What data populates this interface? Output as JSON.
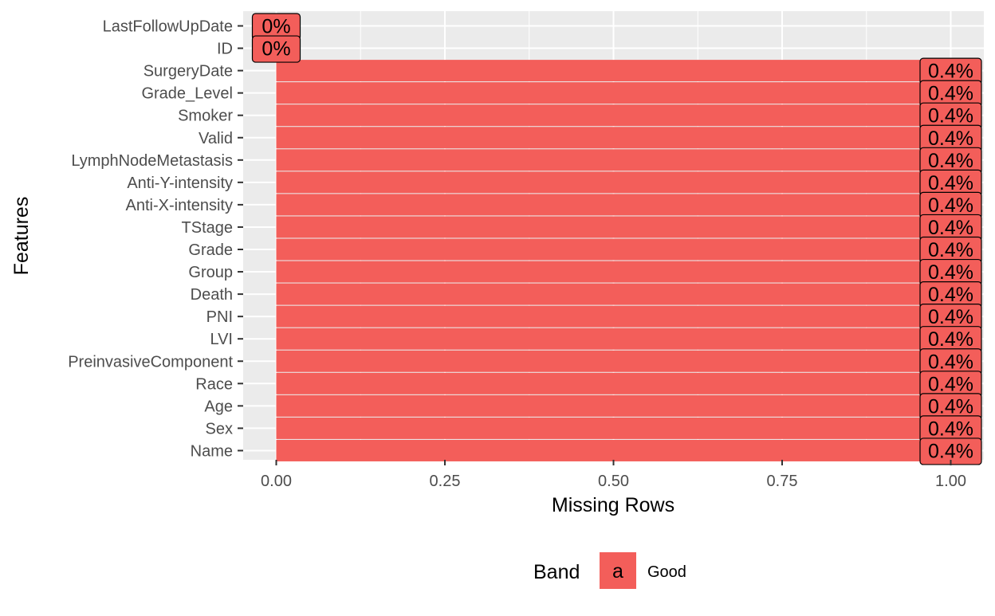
{
  "chart_data": {
    "type": "bar",
    "orientation": "horizontal",
    "title": "",
    "xlabel": "Missing Rows",
    "ylabel": "Features",
    "xlim": [
      0,
      1
    ],
    "x_ticks": [
      "0.00",
      "0.25",
      "0.50",
      "0.75",
      "1.00"
    ],
    "grid": true,
    "categories": [
      "LastFollowUpDate",
      "ID",
      "SurgeryDate",
      "Grade_Level",
      "Smoker",
      "Valid",
      "LymphNodeMetastasis",
      "Anti-Y-intensity",
      "Anti-X-intensity",
      "TStage",
      "Grade",
      "Group",
      "Death",
      "PNI",
      "LVI",
      "PreinvasiveComponent",
      "Race",
      "Age",
      "Sex",
      "Name"
    ],
    "values": [
      0,
      0,
      1,
      1,
      1,
      1,
      1,
      1,
      1,
      1,
      1,
      1,
      1,
      1,
      1,
      1,
      1,
      1,
      1,
      1
    ],
    "labels": [
      "0%",
      "0%",
      "0.4%",
      "0.4%",
      "0.4%",
      "0.4%",
      "0.4%",
      "0.4%",
      "0.4%",
      "0.4%",
      "0.4%",
      "0.4%",
      "0.4%",
      "0.4%",
      "0.4%",
      "0.4%",
      "0.4%",
      "0.4%",
      "0.4%",
      "0.4%"
    ],
    "bar_color": "#F35E5A",
    "panel_color": "#EBEBEB",
    "legend": {
      "title": "Band",
      "key_glyph": "a",
      "entries": [
        {
          "name": "Good",
          "color": "#F35E5A"
        }
      ],
      "position": "bottom"
    }
  }
}
